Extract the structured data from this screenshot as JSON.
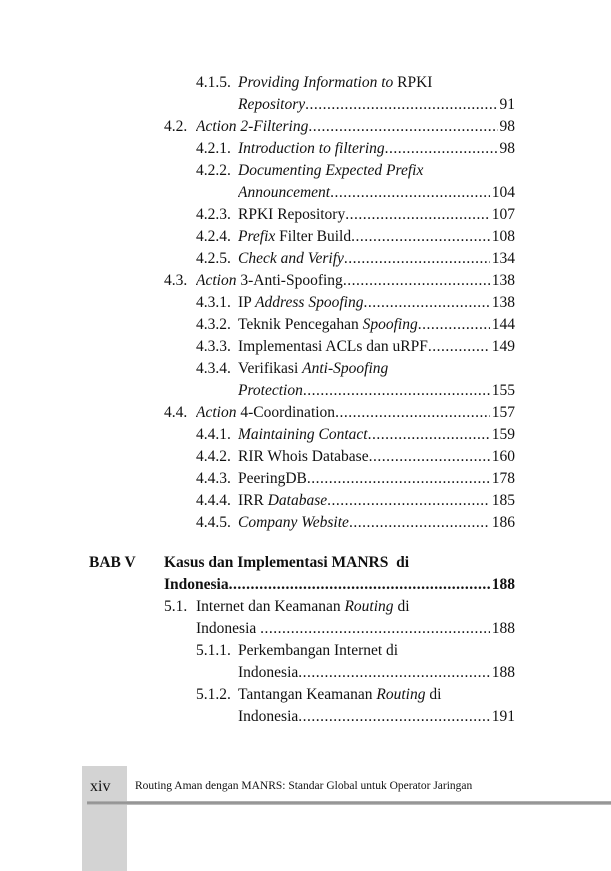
{
  "toc": [
    {
      "level": 3,
      "num": "4.1.5.",
      "segs": [
        {
          "t": "Providing Information to",
          "i": true
        },
        {
          "t": " RPKI",
          "i": false
        }
      ]
    },
    {
      "level": 3,
      "num": "",
      "segs": [
        {
          "t": "Repository",
          "i": true
        }
      ],
      "page": "91"
    },
    {
      "level": 2,
      "num": "4.2.",
      "segs": [
        {
          "t": "Action 2-Filtering",
          "i": true
        }
      ],
      "page": "98"
    },
    {
      "level": 3,
      "num": "4.2.1.",
      "segs": [
        {
          "t": "Introduction to filtering",
          "i": true
        }
      ],
      "page": "98"
    },
    {
      "level": 3,
      "num": "4.2.2.",
      "segs": [
        {
          "t": "Documenting Expected Prefix",
          "i": true
        }
      ]
    },
    {
      "level": 3,
      "num": "",
      "segs": [
        {
          "t": "Announcement",
          "i": true
        }
      ],
      "page": "104"
    },
    {
      "level": 3,
      "num": "4.2.3.",
      "segs": [
        {
          "t": "RPKI Repository",
          "i": false
        }
      ],
      "page": "107"
    },
    {
      "level": 3,
      "num": "4.2.4.",
      "segs": [
        {
          "t": "Prefix",
          "i": true
        },
        {
          "t": " Filter Build",
          "i": false
        }
      ],
      "page": "108"
    },
    {
      "level": 3,
      "num": "4.2.5.",
      "segs": [
        {
          "t": "Check and Verify",
          "i": true
        }
      ],
      "page": "134"
    },
    {
      "level": 2,
      "num": "4.3.",
      "segs": [
        {
          "t": "Action",
          "i": true
        },
        {
          "t": " 3-Anti-Spoofing",
          "i": false
        }
      ],
      "page": "138"
    },
    {
      "level": 3,
      "num": "4.3.1.",
      "segs": [
        {
          "t": "IP ",
          "i": false
        },
        {
          "t": "Address Spoofing",
          "i": true
        }
      ],
      "page": "138"
    },
    {
      "level": 3,
      "num": "4.3.2.",
      "segs": [
        {
          "t": "Teknik Pencegahan ",
          "i": false
        },
        {
          "t": "Spoofing",
          "i": true
        }
      ],
      "page": "144"
    },
    {
      "level": 3,
      "num": "4.3.3.",
      "segs": [
        {
          "t": "Implementasi ACLs dan uRPF",
          "i": false
        }
      ],
      "page": "149"
    },
    {
      "level": 3,
      "num": "4.3.4.",
      "segs": [
        {
          "t": "Verifikasi ",
          "i": false
        },
        {
          "t": "Anti-Spoofing",
          "i": true
        }
      ]
    },
    {
      "level": 3,
      "num": "",
      "segs": [
        {
          "t": "Protection",
          "i": true
        }
      ],
      "page": "155"
    },
    {
      "level": 2,
      "num": "4.4.",
      "segs": [
        {
          "t": "Action",
          "i": true
        },
        {
          "t": " 4-Coordination",
          "i": false
        }
      ],
      "page": "157"
    },
    {
      "level": 3,
      "num": "4.4.1.",
      "segs": [
        {
          "t": "Maintaining Contact",
          "i": true
        }
      ],
      "page": "159"
    },
    {
      "level": 3,
      "num": "4.4.2.",
      "segs": [
        {
          "t": "RIR Whois Database",
          "i": false
        }
      ],
      "page": "160"
    },
    {
      "level": 3,
      "num": "4.4.3.",
      "segs": [
        {
          "t": "PeeringDB",
          "i": false
        }
      ],
      "page": "178"
    },
    {
      "level": 3,
      "num": "4.4.4.",
      "segs": [
        {
          "t": "IRR ",
          "i": false
        },
        {
          "t": "Database",
          "i": true
        }
      ],
      "page": "185"
    },
    {
      "level": 3,
      "num": "4.4.5.",
      "segs": [
        {
          "t": "Company Website",
          "i": true
        }
      ],
      "page": "186"
    },
    {
      "level": 1,
      "num": "BAB V",
      "bold": true,
      "segs": [
        {
          "t": "Kasus dan Implementasi MANRS  di",
          "i": false
        }
      ],
      "gap": true
    },
    {
      "level": 1,
      "num": "",
      "bold": true,
      "segs": [
        {
          "t": "Indonesia",
          "i": false
        }
      ],
      "page": "188"
    },
    {
      "level": 2,
      "num": "5.1.",
      "segs": [
        {
          "t": "Internet dan Keamanan ",
          "i": false
        },
        {
          "t": "Routing",
          "i": true
        },
        {
          "t": " di",
          "i": false
        }
      ]
    },
    {
      "level": 2,
      "num": "",
      "segs": [
        {
          "t": "Indonesia ",
          "i": false
        }
      ],
      "page": "188"
    },
    {
      "level": 3,
      "num": "5.1.1.",
      "segs": [
        {
          "t": "Perkembangan Internet di",
          "i": false
        }
      ]
    },
    {
      "level": 3,
      "num": "",
      "segs": [
        {
          "t": "Indonesia",
          "i": false
        }
      ],
      "page": "188"
    },
    {
      "level": 3,
      "num": "5.1.2.",
      "segs": [
        {
          "t": "Tantangan Keamanan ",
          "i": false
        },
        {
          "t": "Routing",
          "i": true
        },
        {
          "t": " di",
          "i": false
        }
      ]
    },
    {
      "level": 3,
      "num": "",
      "segs": [
        {
          "t": "Indonesia",
          "i": false
        }
      ],
      "page": "191"
    }
  ],
  "footer": {
    "folio": "xiv",
    "running_head": "Routing Aman dengan MANRS: Standar Global untuk Operator Jaringan"
  }
}
